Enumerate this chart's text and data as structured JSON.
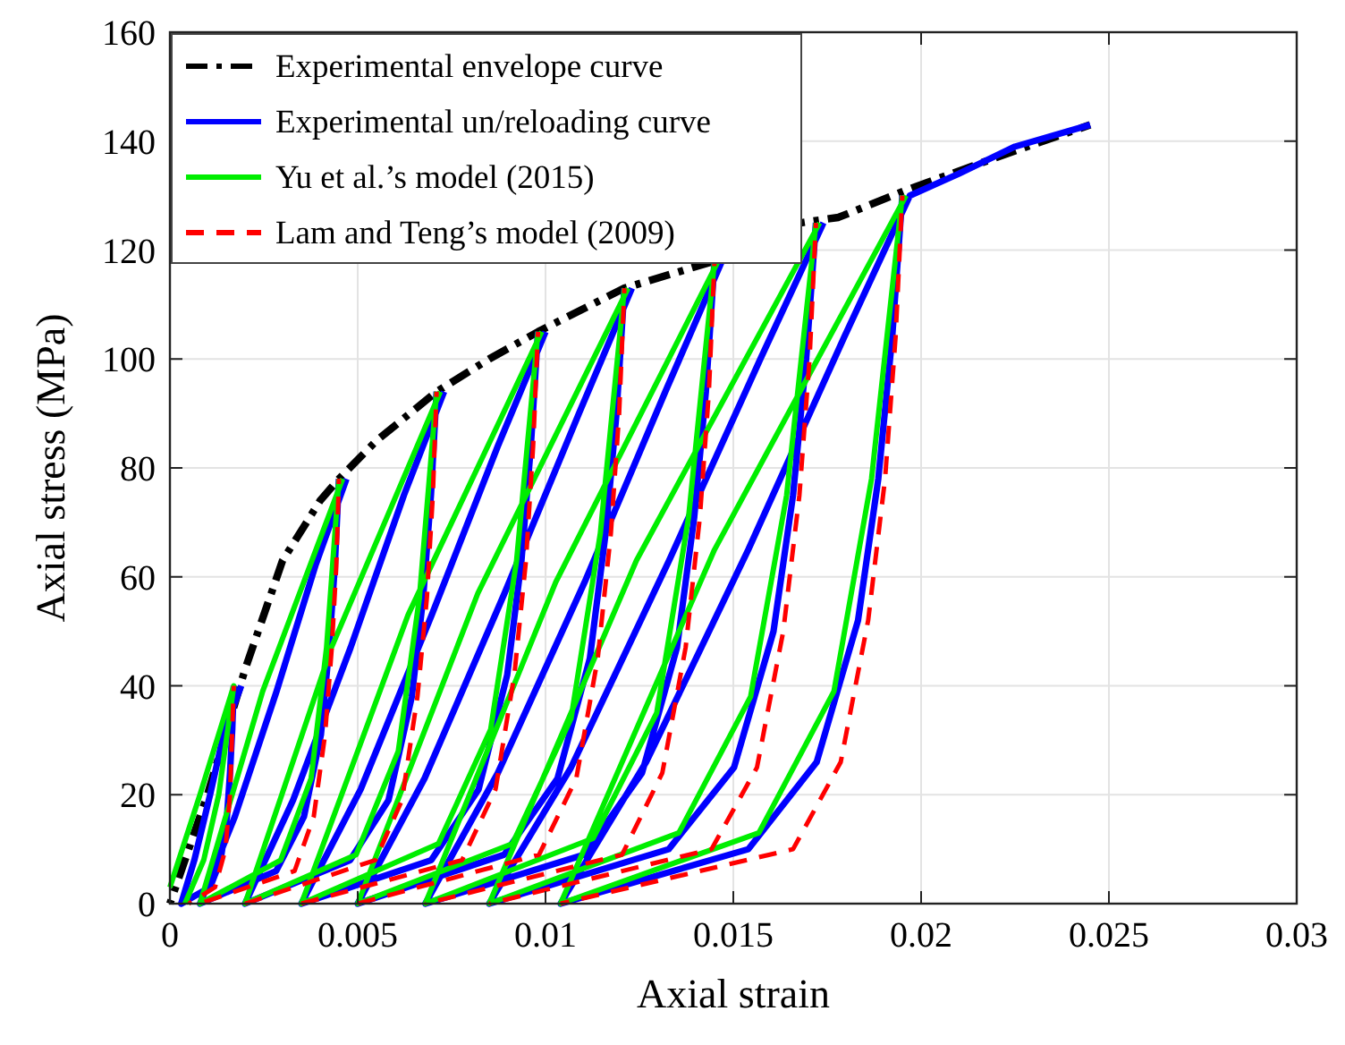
{
  "chart_data": {
    "type": "line",
    "xlabel": "Axial strain",
    "ylabel": "Axial stress (MPa)",
    "xlim": [
      0,
      0.03
    ],
    "ylim": [
      0,
      160
    ],
    "xticks": [
      0,
      0.005,
      0.01,
      0.015,
      0.02,
      0.025,
      0.03
    ],
    "yticks": [
      0,
      20,
      40,
      60,
      80,
      100,
      120,
      140,
      160
    ],
    "grid": true,
    "legend": "top left",
    "series": [
      {
        "name": "Experimental envelope curve",
        "color": "#000000",
        "line_style": "dashdot",
        "x": [
          0,
          0.001,
          0.002,
          0.003,
          0.004,
          0.0045,
          0.0055,
          0.0071,
          0.0085,
          0.0098,
          0.0121,
          0.0145,
          0.0164,
          0.0168,
          0.0178,
          0.0196,
          0.022,
          0.0245
        ],
        "values": [
          0,
          20,
          43,
          63,
          74,
          78,
          85,
          94,
          100,
          105,
          113,
          118,
          null,
          125,
          126,
          131,
          137,
          143
        ]
      },
      {
        "name": "Experimental un/reloading curve",
        "color": "#0000ff",
        "line_style": "solid",
        "x": [
          0.0017,
          0.00166,
          0.0016,
          0.00152,
          0.00135,
          0.00107,
          0.0003,
          0.00065,
          0.00107,
          0.00146,
          0.0019,
          null,
          0.0045,
          0.00439,
          0.00424,
          0.00402,
          0.00357,
          0.00283,
          0.0008,
          0.00173,
          0.00284,
          0.00387,
          0.0047,
          null,
          0.0071,
          0.00695,
          0.00674,
          0.00644,
          0.00582,
          0.0048,
          0.002,
          0.00328,
          0.00481,
          0.00623,
          0.0073,
          null,
          0.0098,
          0.00961,
          0.00936,
          0.00898,
          0.00822,
          0.00696,
          0.0035,
          0.00508,
          0.00697,
          0.00873,
          0.01,
          null,
          0.0121,
          0.01189,
          0.0116,
          0.01118,
          0.01032,
          0.0089,
          0.005,
          0.00678,
          0.00891,
          0.01089,
          0.0123,
          null,
          0.0145,
          0.01427,
          0.01396,
          0.0135,
          0.01257,
          0.01103,
          0.0068,
          0.00873,
          0.01104,
          0.01319,
          0.0147,
          null,
          0.0172,
          0.01694,
          0.01659,
          0.01607,
          0.01502,
          0.01328,
          0.0085,
          0.01068,
          0.01329,
          0.01572,
          0.0174,
          null,
          0.0195,
          0.01923,
          0.01886,
          0.01832,
          0.01722,
          0.0154,
          0.0104,
          0.01268,
          0.0154,
          0.01795,
          0.0197,
          0.021,
          0.0225,
          0.0245
        ],
        "values": [
          40,
          32,
          24,
          16,
          8,
          3,
          0,
          8,
          20,
          32,
          40,
          null,
          78,
          62,
          47,
          31,
          16,
          6,
          0,
          16,
          39,
          62,
          78,
          null,
          94,
          75,
          56,
          38,
          19,
          8,
          0,
          19,
          47,
          75,
          94,
          null,
          105,
          84,
          63,
          42,
          21,
          8,
          0,
          21,
          53,
          84,
          105,
          null,
          113,
          90,
          68,
          45,
          23,
          9,
          0,
          23,
          57,
          90,
          113,
          null,
          118,
          94,
          71,
          47,
          24,
          9,
          0,
          24,
          59,
          94,
          118,
          null,
          125,
          100,
          75,
          50,
          25,
          10,
          0,
          25,
          63,
          100,
          125,
          null,
          130,
          104,
          78,
          52,
          26,
          10,
          0,
          26,
          65,
          104,
          130,
          134,
          139,
          143
        ]
      },
      {
        "name": "Yu et al.’s model (2015)",
        "color": "#00ee00",
        "line_style": "solid",
        "x": [
          0,
          0.0008,
          0.0017,
          0.0013,
          0.0009,
          0.0004,
          null,
          0.0045,
          0.00417,
          0.00376,
          0.00295,
          0.0008,
          0.00247,
          0.0046,
          null,
          0.0071,
          0.00664,
          0.00608,
          0.00496,
          0.002,
          0.0043,
          0.0072,
          null,
          0.0098,
          0.00923,
          0.00854,
          0.00715,
          0.0035,
          0.00634,
          0.0099,
          null,
          0.0121,
          0.01146,
          0.01068,
          0.00912,
          0.005,
          0.0082,
          0.0122,
          null,
          0.0145,
          0.01381,
          0.01296,
          0.01127,
          0.0068,
          0.01027,
          0.0146,
          null,
          0.0172,
          0.01642,
          0.01546,
          0.01355,
          0.0085,
          0.01242,
          0.0173,
          null,
          0.0195,
          0.01868,
          0.01768,
          0.01568,
          0.0104,
          0.0145,
          0.0196
        ],
        "values": [
          3,
          20,
          40,
          20,
          8,
          0,
          null,
          78,
          47,
          23,
          8,
          0,
          39,
          78,
          null,
          94,
          56,
          28,
          9,
          0,
          47,
          94,
          null,
          105,
          63,
          32,
          11,
          0,
          53,
          105,
          null,
          113,
          68,
          34,
          11,
          0,
          57,
          113,
          null,
          118,
          71,
          35,
          12,
          0,
          59,
          118,
          null,
          125,
          75,
          38,
          13,
          0,
          63,
          125,
          null,
          130,
          78,
          39,
          13,
          0,
          65,
          130
        ]
      },
      {
        "name": "Lam and Teng’s model (2009)",
        "color": "#ff0000",
        "line_style": "dashed",
        "x": [
          0.0017,
          0.00165,
          0.0016,
          0.00148,
          0.0012,
          0.0005,
          null,
          0.0045,
          0.00443,
          0.00431,
          0.00413,
          0.00383,
          0.00332,
          0.0008,
          null,
          0.0071,
          0.007,
          0.00684,
          0.00659,
          0.00618,
          0.00547,
          0.002,
          null,
          0.0098,
          0.00967,
          0.00948,
          0.00917,
          0.00867,
          0.00778,
          0.0035,
          null,
          0.0121,
          0.01196,
          0.01174,
          0.01139,
          0.01082,
          0.00983,
          0.005,
          null,
          0.0145,
          0.01435,
          0.01411,
          0.01373,
          0.01311,
          0.01204,
          0.0068,
          null,
          0.0172,
          0.01703,
          0.01676,
          0.01633,
          0.01563,
          0.01442,
          0.0085,
          null,
          0.0195,
          0.01932,
          0.01904,
          0.01859,
          0.01786,
          0.01659,
          0.0104
        ],
        "values": [
          40,
          30,
          20,
          10,
          3,
          0,
          null,
          78,
          62,
          47,
          31,
          16,
          6,
          0,
          null,
          94,
          75,
          56,
          38,
          19,
          8,
          0,
          null,
          105,
          84,
          63,
          42,
          21,
          8,
          0,
          null,
          113,
          90,
          68,
          45,
          23,
          9,
          0,
          null,
          118,
          94,
          71,
          47,
          24,
          9,
          0,
          null,
          125,
          100,
          75,
          50,
          25,
          10,
          0,
          null,
          130,
          104,
          78,
          52,
          26,
          10,
          0
        ]
      }
    ]
  }
}
